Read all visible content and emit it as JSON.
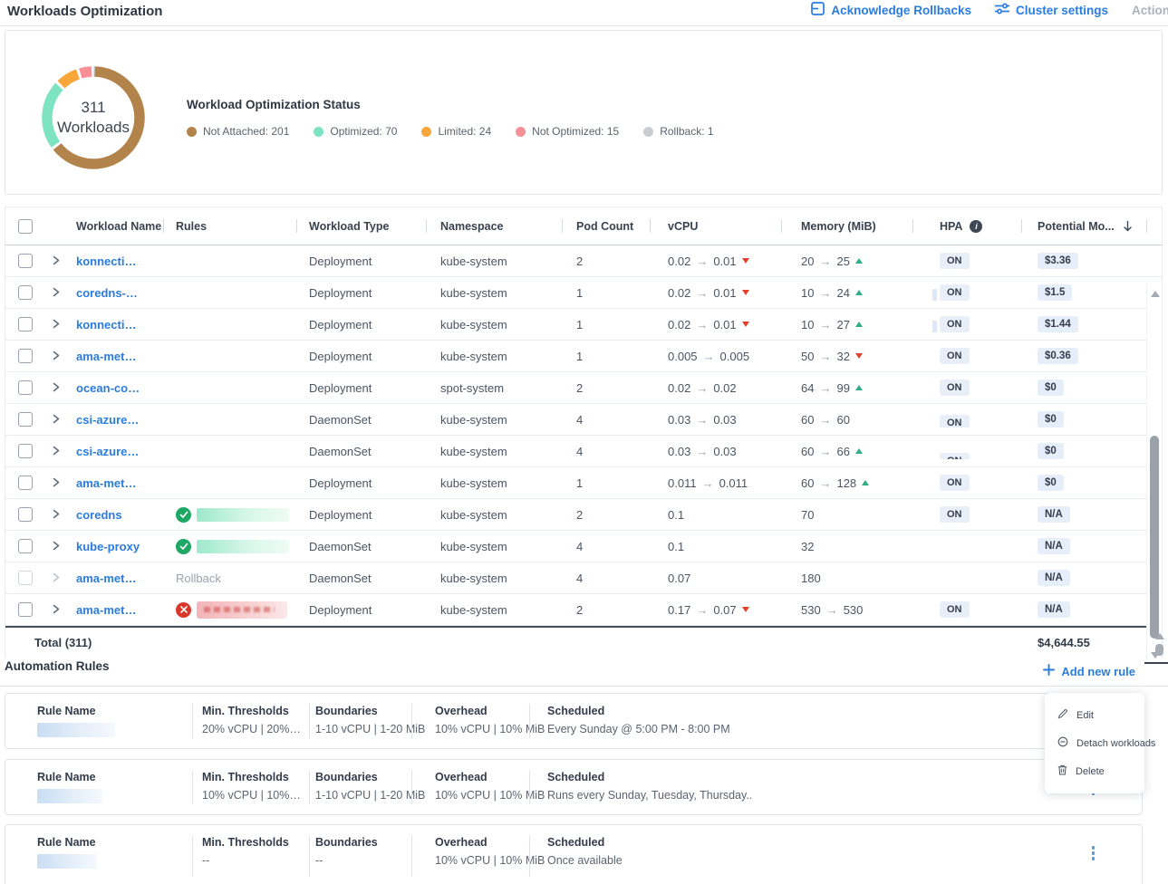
{
  "header": {
    "title": "Workloads Optimization",
    "acknowledge_rollbacks": "Acknowledge Rollbacks",
    "cluster_settings": "Cluster settings",
    "actions": "Action"
  },
  "summary": {
    "count": "311",
    "count_label": "Workloads",
    "status_title": "Workload Optimization Status",
    "legend": [
      {
        "label": "Not Attached: 201",
        "value": 201,
        "color": "#b3834c"
      },
      {
        "label": "Optimized: 70",
        "value": 70,
        "color": "#7de3c1"
      },
      {
        "label": "Limited: 24",
        "value": 24,
        "color": "#f8a63a"
      },
      {
        "label": "Not Optimized: 15",
        "value": 15,
        "color": "#f78f96"
      },
      {
        "label": "Rollback: 1",
        "value": 1,
        "color": "#c9cdd2"
      }
    ]
  },
  "table": {
    "headers": {
      "workload_name": "Workload Name",
      "rules": "Rules",
      "workload_type": "Workload Type",
      "namespace": "Namespace",
      "pod_count": "Pod Count",
      "vcpu": "vCPU",
      "memory": "Memory (MiB)",
      "hpa": "HPA",
      "potential": "Potential Mo..."
    },
    "rows": [
      {
        "name": "konnecti…",
        "rule": null,
        "type": "Deployment",
        "namespace": "kube-system",
        "pods": "2",
        "cpu": {
          "from": "0.02",
          "to": "0.01",
          "trend": "down"
        },
        "mem": {
          "from": "20",
          "to": "25",
          "trend": "up"
        },
        "hpa": "ON",
        "hpa_variant": null,
        "potential": "$3.36",
        "dimmed": false
      },
      {
        "name": "coredns-…",
        "rule": null,
        "type": "Deployment",
        "namespace": "kube-system",
        "pods": "1",
        "cpu": {
          "from": "0.02",
          "to": "0.01",
          "trend": "down"
        },
        "mem": {
          "from": "10",
          "to": "24",
          "trend": "up"
        },
        "hpa": "ON",
        "hpa_variant": "shimmer",
        "potential": "$1.5",
        "dimmed": false
      },
      {
        "name": "konnecti…",
        "rule": null,
        "type": "Deployment",
        "namespace": "kube-system",
        "pods": "1",
        "cpu": {
          "from": "0.02",
          "to": "0.01",
          "trend": "down"
        },
        "mem": {
          "from": "10",
          "to": "27",
          "trend": "up"
        },
        "hpa": "ON",
        "hpa_variant": "shimmer",
        "potential": "$1.44",
        "dimmed": false
      },
      {
        "name": "ama-met…",
        "rule": null,
        "type": "Deployment",
        "namespace": "kube-system",
        "pods": "1",
        "cpu": {
          "from": "0.005",
          "to": "0.005",
          "trend": null
        },
        "mem": {
          "from": "50",
          "to": "32",
          "trend": "down"
        },
        "hpa": "ON",
        "hpa_variant": null,
        "potential": "$0.36",
        "dimmed": false
      },
      {
        "name": "ocean-co…",
        "rule": null,
        "type": "Deployment",
        "namespace": "spot-system",
        "pods": "2",
        "cpu": {
          "from": "0.02",
          "to": "0.02",
          "trend": null
        },
        "mem": {
          "from": "64",
          "to": "99",
          "trend": "up"
        },
        "hpa": "ON",
        "hpa_variant": null,
        "potential": "$0",
        "dimmed": false
      },
      {
        "name": "csi-azure…",
        "rule": null,
        "type": "DaemonSet",
        "namespace": "kube-system",
        "pods": "4",
        "cpu": {
          "from": "0.03",
          "to": "0.03",
          "trend": null
        },
        "mem": {
          "from": "60",
          "to": "60",
          "trend": null
        },
        "hpa": "ON",
        "hpa_variant": "low",
        "potential": "$0",
        "dimmed": false
      },
      {
        "name": "csi-azure…",
        "rule": null,
        "type": "DaemonSet",
        "namespace": "kube-system",
        "pods": "4",
        "cpu": {
          "from": "0.03",
          "to": "0.03",
          "trend": null
        },
        "mem": {
          "from": "60",
          "to": "66",
          "trend": "up"
        },
        "hpa": "ON",
        "hpa_variant": "lower",
        "potential": "$0",
        "dimmed": false
      },
      {
        "name": "ama-met…",
        "rule": null,
        "type": "Deployment",
        "namespace": "kube-system",
        "pods": "1",
        "cpu": {
          "from": "0.011",
          "to": "0.011",
          "trend": null
        },
        "mem": {
          "from": "60",
          "to": "128",
          "trend": "up"
        },
        "hpa": "ON",
        "hpa_variant": null,
        "potential": "$0",
        "dimmed": false
      },
      {
        "name": "coredns",
        "rule": {
          "kind": "success",
          "redacted": true
        },
        "type": "Deployment",
        "namespace": "kube-system",
        "pods": "2",
        "cpu": {
          "value": "0.1"
        },
        "mem": {
          "value": "70"
        },
        "hpa": "ON",
        "hpa_variant": null,
        "potential": "N/A",
        "dimmed": false
      },
      {
        "name": "kube-proxy",
        "rule": {
          "kind": "success",
          "redacted": true
        },
        "type": "DaemonSet",
        "namespace": "kube-system",
        "pods": "4",
        "cpu": {
          "value": "0.1"
        },
        "mem": {
          "value": "32"
        },
        "hpa": "",
        "hpa_variant": null,
        "potential": "N/A",
        "dimmed": false
      },
      {
        "name": "ama-met…",
        "rule": {
          "kind": "text",
          "label": "Rollback"
        },
        "type": "DaemonSet",
        "namespace": "kube-system",
        "pods": "4",
        "cpu": {
          "value": "0.07"
        },
        "mem": {
          "value": "180"
        },
        "hpa": "",
        "hpa_variant": null,
        "potential": "N/A",
        "dimmed": true
      },
      {
        "name": "ama-met…",
        "rule": {
          "kind": "error",
          "redacted": true
        },
        "type": "Deployment",
        "namespace": "kube-system",
        "pods": "2",
        "cpu": {
          "from": "0.17",
          "to": "0.07",
          "trend": "down"
        },
        "mem": {
          "from": "530",
          "to": "530",
          "trend": null
        },
        "hpa": "ON",
        "hpa_variant": null,
        "potential": "N/A",
        "dimmed": false
      }
    ],
    "total_label": "Total (311)",
    "total_value": "$4,644.55"
  },
  "automation": {
    "title": "Automation Rules",
    "add_new_rule": "Add new rule",
    "labels": {
      "rule_name": "Rule Name",
      "min_thresholds": "Min. Thresholds",
      "boundaries": "Boundaries",
      "overhead": "Overhead",
      "scheduled": "Scheduled"
    },
    "rules": [
      {
        "name_redacted": true,
        "min_thresholds": "20% vCPU | 20%…",
        "boundaries": "1-10 vCPU | 1-20 MiB",
        "overhead": "10% vCPU | 10% MiB",
        "scheduled": "Every Sunday @ 5:00 PM - 8:00 PM"
      },
      {
        "name_redacted": true,
        "min_thresholds": "10% vCPU | 10%…",
        "boundaries": "1-10 vCPU | 1-20 MiB",
        "overhead": "10% vCPU | 10% MiB",
        "scheduled": "Runs every Sunday, Tuesday, Thursday.."
      },
      {
        "name_redacted": true,
        "min_thresholds": "--",
        "boundaries": "--",
        "overhead": "10% vCPU | 10% MiB",
        "scheduled": "Once available"
      }
    ],
    "context_menu": [
      {
        "label": "Edit",
        "icon": "pencil-icon"
      },
      {
        "label": "Detach workloads",
        "icon": "detach-icon"
      },
      {
        "label": "Delete",
        "icon": "trash-icon"
      }
    ]
  }
}
